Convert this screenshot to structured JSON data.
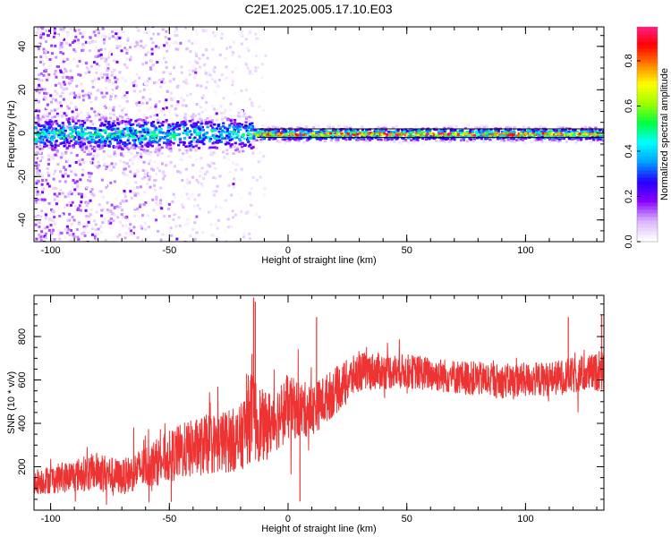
{
  "title": "C2E1.2025.005.17.10.E03",
  "chart_data": [
    {
      "type": "heatmap",
      "xlabel": "Height of straight line (km)",
      "ylabel": "Frequency (Hz)",
      "xlim": [
        -107,
        133
      ],
      "ylim": [
        -50,
        49
      ],
      "x_ticks": [
        -100,
        -50,
        0,
        50,
        100
      ],
      "x_tick_labels": [
        "-100",
        "-50",
        "0",
        "50",
        "100"
      ],
      "y_ticks": [
        -40,
        -20,
        0,
        20,
        40
      ],
      "y_tick_labels": [
        "-40",
        "-20",
        "0",
        "20",
        "40"
      ],
      "colorbar": {
        "label": "Normalized spectral amplitude",
        "range": [
          0.0,
          0.95
        ],
        "ticks": [
          0.0,
          0.2,
          0.4,
          0.6,
          0.8
        ],
        "tick_labels": [
          "0.0",
          "0.2",
          "0.4",
          "0.6",
          "0.8"
        ],
        "colors": [
          "#ffffff",
          "#d9b3ff",
          "#8800ff",
          "#2200ff",
          "#00a0ff",
          "#00ffff",
          "#00ff40",
          "#a0ff00",
          "#ffff00",
          "#ff8000",
          "#ff0000",
          "#ff2090"
        ]
      },
      "features": {
        "horizontal_lines_hz": [
          2,
          -2
        ],
        "band_center_hz": 0,
        "scatter_region_km": [
          -107,
          -15
        ]
      }
    },
    {
      "type": "line",
      "xlabel": "Height of straight line (km)",
      "ylabel": "SNR (10 * v/v)",
      "xlim": [
        -107,
        133
      ],
      "ylim": [
        0,
        990
      ],
      "x_ticks": [
        -100,
        -50,
        0,
        50,
        100
      ],
      "x_tick_labels": [
        "-100",
        "-50",
        "0",
        "50",
        "100"
      ],
      "y_ticks": [
        200,
        400,
        600,
        800
      ],
      "y_tick_labels": [
        "200",
        "400",
        "600",
        "800"
      ],
      "color": "#ee3333",
      "profile": {
        "x": [
          -107,
          -95,
          -80,
          -70,
          -60,
          -45,
          -35,
          -20,
          -16,
          -10,
          0,
          10,
          20,
          30,
          50,
          70,
          90,
          110,
          133
        ],
        "center": [
          130,
          150,
          180,
          150,
          200,
          270,
          300,
          330,
          440,
          380,
          470,
          460,
          550,
          640,
          640,
          615,
          595,
          605,
          640
        ],
        "spread": [
          60,
          70,
          90,
          80,
          100,
          130,
          140,
          150,
          220,
          160,
          150,
          120,
          110,
          90,
          80,
          80,
          80,
          80,
          90
        ]
      },
      "spikes": [
        {
          "x": -14.5,
          "y": 980
        },
        {
          "x": -13.8,
          "y": 960
        },
        {
          "x": -15.2,
          "y": 720
        },
        {
          "x": 12,
          "y": 890
        },
        {
          "x": 118,
          "y": 890
        },
        {
          "x": 132,
          "y": 900
        },
        {
          "x": 5,
          "y": 40
        }
      ]
    }
  ]
}
